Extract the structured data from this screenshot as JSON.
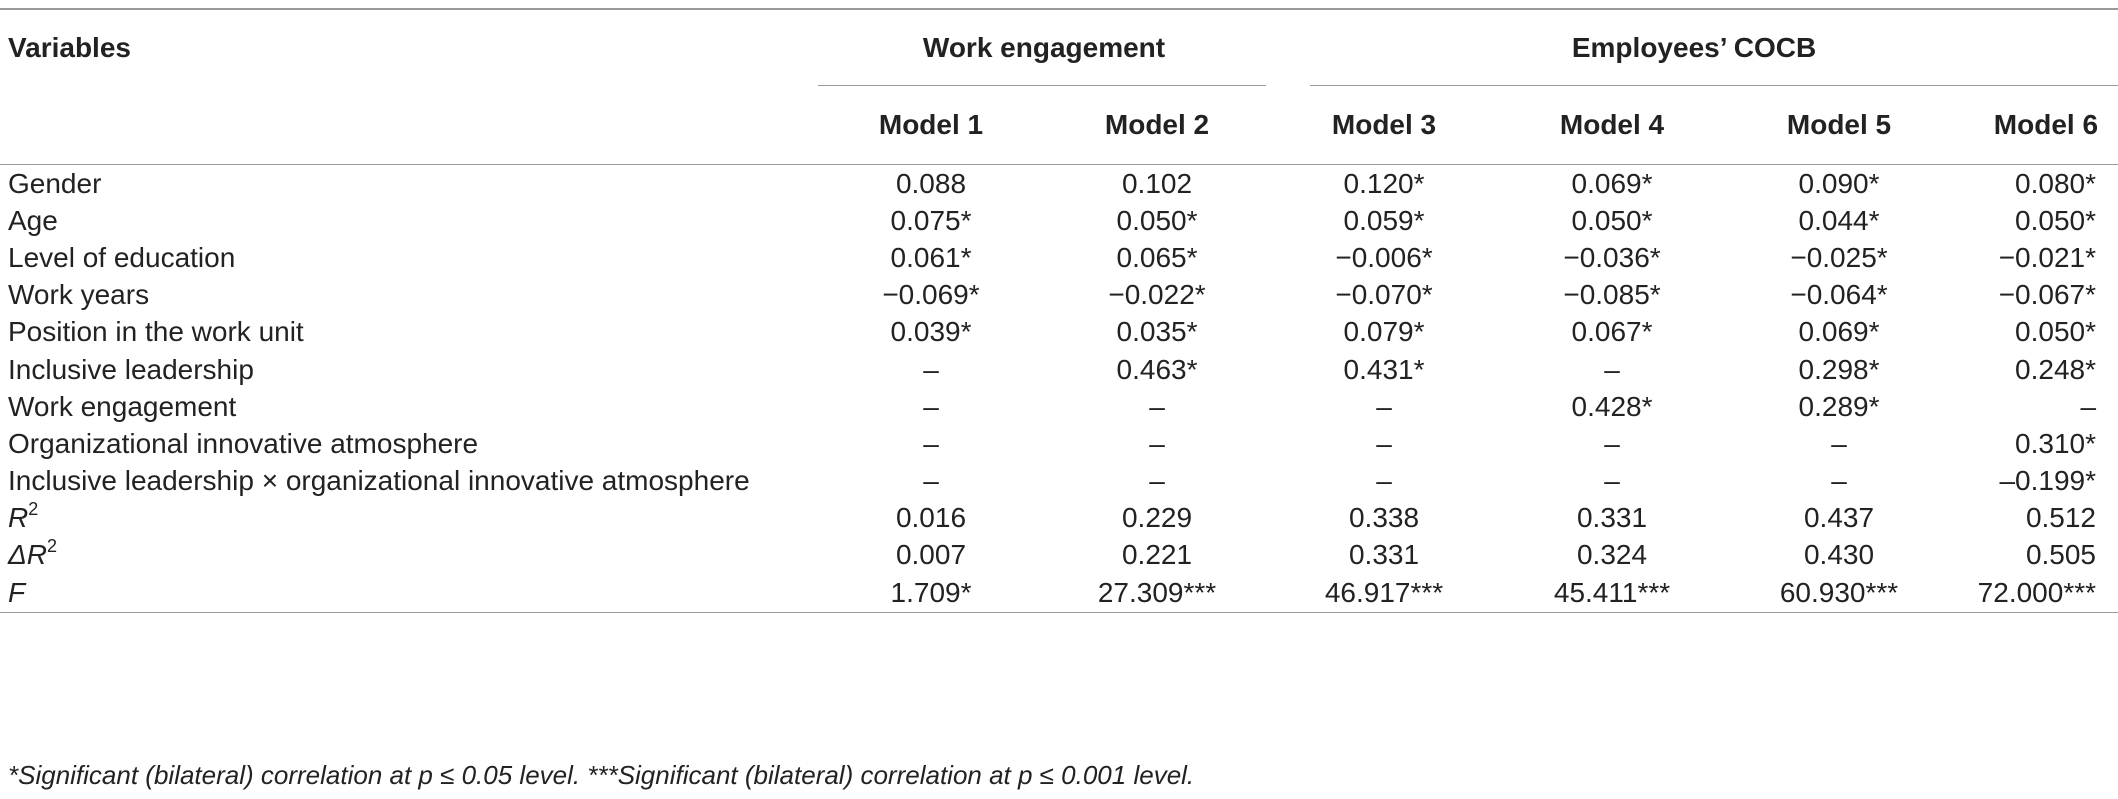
{
  "table": {
    "header": {
      "variables": "Variables",
      "group1": "Work engagement",
      "group2": "Employees’ COCB",
      "models": [
        "Model 1",
        "Model 2",
        "Model 3",
        "Model 4",
        "Model 5",
        "Model 6"
      ]
    },
    "rows": [
      {
        "label": "Gender",
        "values": [
          "0.088",
          "0.102",
          "0.120*",
          "0.069*",
          "0.090*",
          "0.080*"
        ]
      },
      {
        "label": "Age",
        "values": [
          "0.075*",
          "0.050*",
          "0.059*",
          "0.050*",
          "0.044*",
          "0.050*"
        ]
      },
      {
        "label": "Level of education",
        "values": [
          "0.061*",
          "0.065*",
          "−0.006*",
          "−0.036*",
          "−0.025*",
          "−0.021*"
        ]
      },
      {
        "label": "Work years",
        "values": [
          "−0.069*",
          "−0.022*",
          "−0.070*",
          "−0.085*",
          "−0.064*",
          "−0.067*"
        ]
      },
      {
        "label": "Position in the work unit",
        "values": [
          "0.039*",
          "0.035*",
          "0.079*",
          "0.067*",
          "0.069*",
          "0.050*"
        ]
      },
      {
        "label": "Inclusive leadership",
        "values": [
          "–",
          "0.463*",
          "0.431*",
          "–",
          "0.298*",
          "0.248*"
        ]
      },
      {
        "label": "Work engagement",
        "values": [
          "–",
          "–",
          "–",
          "0.428*",
          "0.289*",
          "–"
        ]
      },
      {
        "label": "Organizational innovative atmosphere",
        "values": [
          "–",
          "–",
          "–",
          "–",
          "–",
          "0.310*"
        ]
      },
      {
        "label": "Inclusive leadership × organizational innovative atmosphere",
        "values": [
          "–",
          "–",
          "–",
          "–",
          "–",
          "–0.199*"
        ]
      },
      {
        "label": "R",
        "sup": "2",
        "italic": true,
        "values": [
          "0.016",
          "0.229",
          "0.338",
          "0.331",
          "0.437",
          "0.512"
        ]
      },
      {
        "label": "ΔR",
        "sup": "2",
        "italic": true,
        "values": [
          "0.007",
          "0.221",
          "0.331",
          "0.324",
          "0.430",
          "0.505"
        ]
      },
      {
        "label": "F",
        "italic": true,
        "values": [
          "1.709*",
          "27.309***",
          "46.917***",
          "45.411***",
          "60.930***",
          "72.000***"
        ]
      }
    ],
    "footnote": "*Significant (bilateral) correlation at p ≤ 0.05 level. ***Significant (bilateral) correlation at p ≤ 0.001 level."
  }
}
